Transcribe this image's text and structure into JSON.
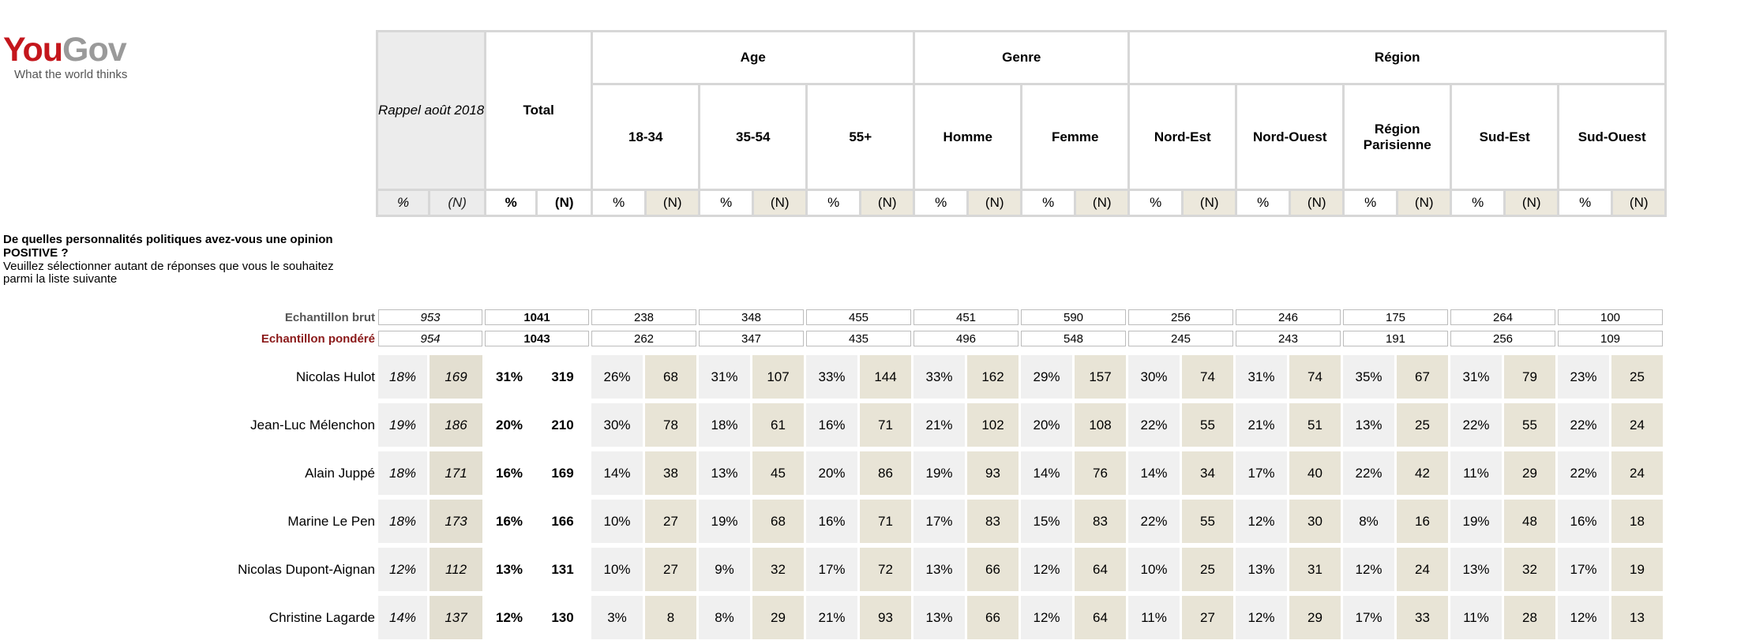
{
  "logo": {
    "you": "You",
    "gov": "Gov",
    "tagline": "What the world thinks"
  },
  "question": {
    "title": "De quelles personnalités politiques avez-vous une opinion POSITIVE ?",
    "instruction": "Veuillez sélectionner autant de réponses que vous le souhaitez parmi la liste suivante"
  },
  "header": {
    "rappel": "Rappel août 2018",
    "total": "Total",
    "groups": [
      {
        "label": "Age",
        "subs": [
          "18-34",
          "35-54",
          "55+"
        ]
      },
      {
        "label": "Genre",
        "subs": [
          "Homme",
          "Femme"
        ]
      },
      {
        "label": "Région",
        "subs": [
          "Nord-Est",
          "Nord-Ouest",
          "Région Parisienne",
          "Sud-Est",
          "Sud-Ouest"
        ]
      }
    ],
    "pct": "%",
    "n": "(N)"
  },
  "samples": {
    "brut_label": "Echantillon brut",
    "pondere_label": "Echantillon pondéré",
    "brut": [
      "953",
      "1041",
      "238",
      "348",
      "455",
      "451",
      "590",
      "256",
      "246",
      "175",
      "264",
      "100"
    ],
    "pondere": [
      "954",
      "1043",
      "262",
      "347",
      "435",
      "496",
      "548",
      "245",
      "243",
      "191",
      "256",
      "109"
    ]
  },
  "rows": [
    {
      "name": "Nicolas Hulot",
      "values": [
        "18%",
        "169",
        "31%",
        "319",
        "26%",
        "68",
        "31%",
        "107",
        "33%",
        "144",
        "33%",
        "162",
        "29%",
        "157",
        "30%",
        "74",
        "31%",
        "74",
        "35%",
        "67",
        "31%",
        "79",
        "23%",
        "25"
      ]
    },
    {
      "name": "Jean-Luc Mélenchon",
      "values": [
        "19%",
        "186",
        "20%",
        "210",
        "30%",
        "78",
        "18%",
        "61",
        "16%",
        "71",
        "21%",
        "102",
        "20%",
        "108",
        "22%",
        "55",
        "21%",
        "51",
        "13%",
        "25",
        "22%",
        "55",
        "22%",
        "24"
      ]
    },
    {
      "name": "Alain Juppé",
      "values": [
        "18%",
        "171",
        "16%",
        "169",
        "14%",
        "38",
        "13%",
        "45",
        "20%",
        "86",
        "19%",
        "93",
        "14%",
        "76",
        "14%",
        "34",
        "17%",
        "40",
        "22%",
        "42",
        "11%",
        "29",
        "22%",
        "24"
      ]
    },
    {
      "name": "Marine Le Pen",
      "values": [
        "18%",
        "173",
        "16%",
        "166",
        "10%",
        "27",
        "19%",
        "68",
        "16%",
        "71",
        "17%",
        "83",
        "15%",
        "83",
        "22%",
        "55",
        "12%",
        "30",
        "8%",
        "16",
        "19%",
        "48",
        "16%",
        "18"
      ]
    },
    {
      "name": "Nicolas Dupont-Aignan",
      "values": [
        "12%",
        "112",
        "13%",
        "131",
        "10%",
        "27",
        "9%",
        "32",
        "17%",
        "72",
        "13%",
        "66",
        "12%",
        "64",
        "10%",
        "25",
        "13%",
        "31",
        "12%",
        "24",
        "13%",
        "32",
        "17%",
        "19"
      ]
    },
    {
      "name": "Christine Lagarde",
      "values": [
        "14%",
        "137",
        "12%",
        "130",
        "3%",
        "8",
        "8%",
        "29",
        "21%",
        "93",
        "13%",
        "66",
        "12%",
        "64",
        "11%",
        "27",
        "12%",
        "29",
        "17%",
        "33",
        "11%",
        "28",
        "12%",
        "13"
      ]
    }
  ],
  "colors": {
    "brand_red": "#c4161c",
    "brand_grey": "#9a9a9a",
    "n_column": "#e8e4d6",
    "pct_column": "#f0f0f0",
    "pondere_label": "#8b1a1a",
    "brut_label": "#555555"
  }
}
